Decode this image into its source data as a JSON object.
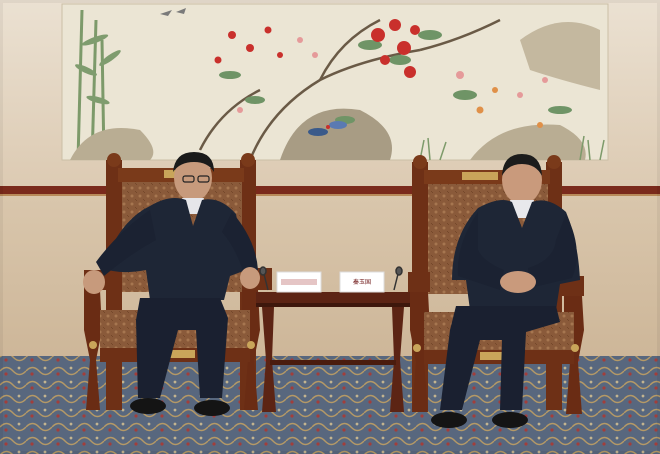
{
  "scene": {
    "nameplates": [
      {
        "text": ""
      },
      {
        "text": "秦玉国"
      }
    ],
    "colors": {
      "wall": "#e4d6c2",
      "wall_lower": "#d6c2a9",
      "painting_bg": "#ebe5d4",
      "wood_trim": "#7a2a1c",
      "carpet": "#5f6f86",
      "chair_wood": "#6e3016",
      "chair_upholstery": "#8a5a3a",
      "suit": "#1e2636",
      "table": "#5c2414"
    }
  }
}
